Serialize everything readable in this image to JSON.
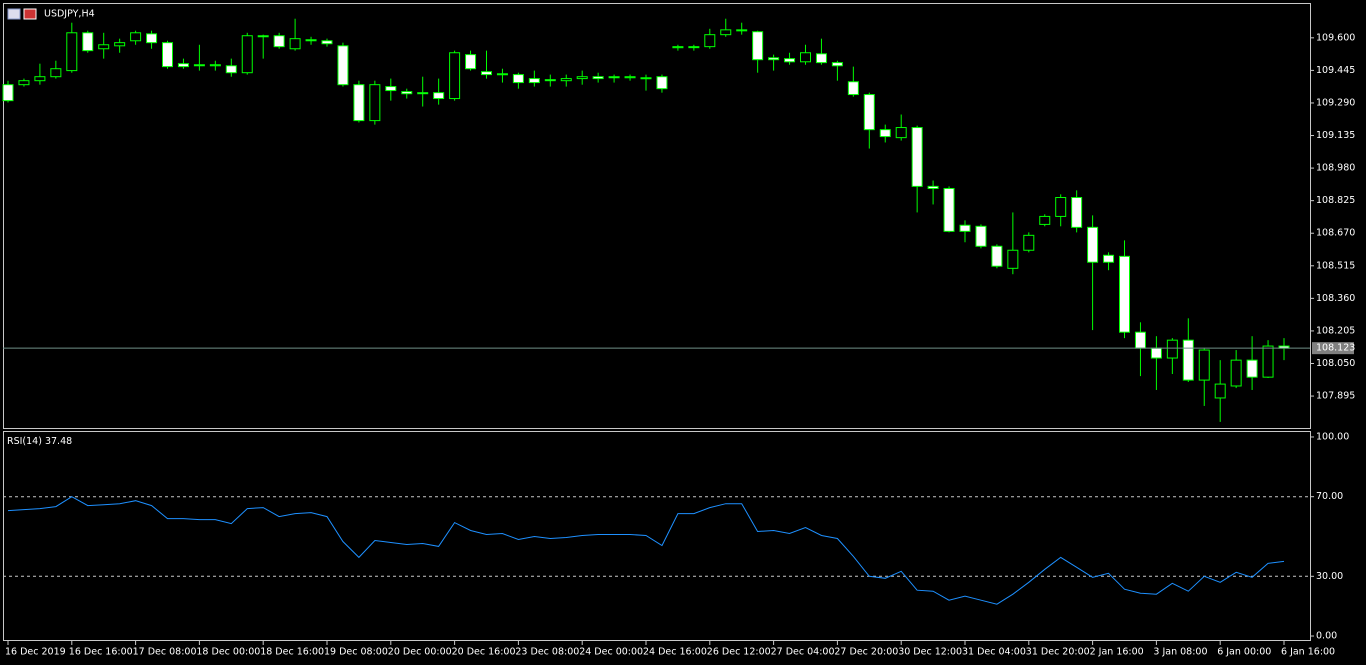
{
  "chart_data": [
    {
      "type": "candlestick",
      "title": "USDJPY,H4",
      "categories": [
        "16 Dec 2019",
        null,
        null,
        null,
        "16 Dec 16:00",
        null,
        null,
        null,
        "17 Dec 08:00",
        null,
        null,
        null,
        "18 Dec 00:00",
        null,
        null,
        null,
        "18 Dec 16:00",
        null,
        null,
        null,
        "19 Dec 08:00",
        null,
        null,
        null,
        "20 Dec 00:00",
        null,
        null,
        null,
        "20 Dec 16:00",
        null,
        null,
        null,
        "23 Dec 08:00",
        null,
        null,
        null,
        "24 Dec 00:00",
        null,
        null,
        null,
        "24 Dec 16:00",
        null,
        null,
        null,
        "26 Dec 12:00",
        null,
        null,
        null,
        "27 Dec 04:00",
        null,
        null,
        null,
        "27 Dec 20:00",
        null,
        null,
        null,
        "30 Dec 12:00",
        null,
        null,
        null,
        "31 Dec 04:00",
        null,
        null,
        null,
        "31 Dec 20:00",
        null,
        null,
        null,
        "2 Jan 16:00",
        null,
        null,
        null,
        "3 Jan 08:00",
        null,
        null,
        null,
        "6 Jan 00:00",
        null,
        null,
        null,
        "6 Jan 16:00"
      ],
      "open": [
        109.377,
        109.377,
        109.396,
        109.415,
        109.444,
        109.624,
        109.548,
        109.562,
        109.586,
        109.619,
        109.577,
        109.477,
        109.472,
        109.467,
        109.467,
        109.434,
        109.61,
        109.61,
        109.548,
        109.591,
        109.586,
        109.562,
        109.377,
        109.206,
        109.368,
        109.344,
        109.339,
        109.339,
        109.311,
        109.52,
        109.439,
        109.429,
        109.425,
        109.406,
        109.401,
        109.396,
        109.406,
        109.415,
        109.415,
        109.41,
        109.41,
        109.415,
        109.553,
        109.558,
        109.558,
        109.615,
        109.638,
        109.629,
        109.505,
        109.501,
        109.486,
        109.524,
        109.482,
        109.391,
        109.33,
        109.163,
        109.125,
        109.173,
        108.893,
        108.883,
        108.708,
        108.703,
        108.608,
        108.503,
        108.589,
        108.712,
        108.75,
        108.84,
        108.698,
        108.565,
        108.56,
        108.199,
        108.123,
        108.076,
        108.161,
        107.971,
        107.886,
        107.943,
        108.066,
        107.985,
        108.133
      ],
      "high": [
        109.396,
        109.406,
        109.477,
        109.491,
        109.672,
        109.634,
        109.624,
        109.596,
        109.634,
        109.634,
        109.586,
        109.501,
        109.567,
        109.491,
        109.501,
        109.624,
        109.615,
        109.624,
        109.691,
        109.605,
        109.596,
        109.577,
        109.396,
        109.396,
        109.406,
        109.358,
        109.415,
        109.406,
        109.539,
        109.539,
        109.539,
        109.453,
        109.434,
        109.444,
        109.425,
        109.425,
        109.444,
        109.434,
        109.425,
        109.425,
        109.425,
        109.425,
        109.567,
        109.567,
        109.643,
        109.691,
        109.672,
        109.634,
        109.52,
        109.529,
        109.567,
        109.596,
        109.491,
        109.463,
        109.339,
        109.187,
        109.235,
        109.182,
        108.921,
        108.893,
        108.731,
        108.712,
        108.617,
        108.769,
        108.674,
        108.76,
        108.855,
        108.874,
        108.755,
        108.579,
        108.636,
        108.246,
        108.18,
        108.171,
        108.265,
        108.123,
        108.066,
        108.114,
        108.18,
        108.161,
        108.171
      ],
      "low": [
        109.292,
        109.368,
        109.377,
        109.406,
        109.434,
        109.529,
        109.501,
        109.529,
        109.567,
        109.548,
        109.453,
        109.453,
        109.444,
        109.444,
        109.415,
        109.425,
        109.501,
        109.548,
        109.539,
        109.567,
        109.558,
        109.368,
        109.197,
        109.187,
        109.301,
        109.311,
        109.273,
        109.282,
        109.301,
        109.444,
        109.406,
        109.387,
        109.358,
        109.368,
        109.368,
        109.368,
        109.377,
        109.387,
        109.387,
        109.396,
        109.349,
        109.339,
        109.539,
        109.539,
        109.548,
        109.605,
        109.615,
        109.434,
        109.444,
        109.472,
        109.472,
        109.472,
        109.396,
        109.32,
        109.073,
        109.102,
        109.111,
        108.769,
        108.807,
        108.674,
        108.627,
        108.598,
        108.503,
        108.475,
        108.579,
        108.703,
        108.703,
        108.674,
        108.209,
        108.494,
        108.171,
        107.99,
        107.924,
        108.0,
        107.962,
        107.848,
        107.772,
        107.933,
        107.924,
        107.981,
        108.066
      ],
      "close": [
        109.301,
        109.396,
        109.415,
        109.453,
        109.624,
        109.539,
        109.567,
        109.577,
        109.624,
        109.577,
        109.463,
        109.463,
        109.467,
        109.472,
        109.434,
        109.61,
        109.605,
        109.558,
        109.596,
        109.586,
        109.572,
        109.377,
        109.206,
        109.377,
        109.349,
        109.334,
        109.334,
        109.311,
        109.529,
        109.453,
        109.425,
        109.425,
        109.387,
        109.387,
        109.396,
        109.406,
        109.415,
        109.406,
        109.41,
        109.415,
        109.406,
        109.358,
        109.558,
        109.555,
        109.615,
        109.638,
        109.634,
        109.496,
        109.496,
        109.486,
        109.529,
        109.482,
        109.467,
        109.33,
        109.163,
        109.13,
        109.173,
        108.893,
        108.883,
        108.679,
        108.679,
        108.608,
        108.513,
        108.589,
        108.66,
        108.75,
        108.84,
        108.698,
        108.532,
        108.532,
        108.199,
        108.123,
        108.076,
        108.161,
        107.971,
        108.114,
        107.952,
        108.066,
        107.985,
        108.133,
        108.123
      ],
      "wick_color": "#00ff00",
      "bull_color": "#000000",
      "bear_color": "#ffffff",
      "ylim": [
        107.743,
        109.761
      ],
      "yticks": [
        {
          "value": 109.6,
          "label": "109.600"
        },
        {
          "value": 109.445,
          "label": "109.445"
        },
        {
          "value": 109.29,
          "label": "109.290"
        },
        {
          "value": 109.135,
          "label": "109.135"
        },
        {
          "value": 108.98,
          "label": "108.980"
        },
        {
          "value": 108.825,
          "label": "108.825"
        },
        {
          "value": 108.67,
          "label": "108.670"
        },
        {
          "value": 108.515,
          "label": "108.515"
        },
        {
          "value": 108.36,
          "label": "108.360"
        },
        {
          "value": 108.205,
          "label": "108.205"
        },
        {
          "value": 108.05,
          "label": "108.050"
        },
        {
          "value": 107.895,
          "label": "107.895"
        }
      ],
      "current_price": {
        "value": 108.123,
        "label": "108.123"
      }
    },
    {
      "type": "line",
      "title": "RSI(14)",
      "values": [
        63,
        63.5,
        64,
        65,
        70,
        65.5,
        66,
        66.5,
        68,
        65.5,
        59,
        59,
        58.5,
        58.5,
        56.5,
        64,
        64.5,
        60,
        61.5,
        62,
        60,
        47.5,
        39.5,
        48,
        47,
        46,
        46.5,
        45,
        57,
        53,
        51,
        51.5,
        48.5,
        50,
        49,
        49.5,
        50.5,
        51,
        51,
        51,
        50.5,
        45.5,
        61.5,
        61.5,
        64.5,
        66.5,
        66.5,
        52.5,
        53,
        51.5,
        54.5,
        50.5,
        49,
        40,
        30,
        29,
        32.5,
        23,
        22.5,
        18,
        20,
        18,
        16,
        21,
        27,
        33.5,
        39.5,
        34.5,
        29.5,
        31.5,
        23.5,
        21.5,
        21,
        26.5,
        22.5,
        30,
        27,
        32,
        29.5,
        36.5,
        37.48
      ],
      "color": "#1e90ff",
      "ylim": [
        -2,
        102.5
      ],
      "yticks": [
        {
          "value": 100,
          "label": "100.00"
        },
        {
          "value": 70,
          "label": "70.00"
        },
        {
          "value": 30,
          "label": "30.00"
        },
        {
          "value": 0,
          "label": "0.00"
        }
      ],
      "levels": [
        70,
        30
      ]
    }
  ]
}
